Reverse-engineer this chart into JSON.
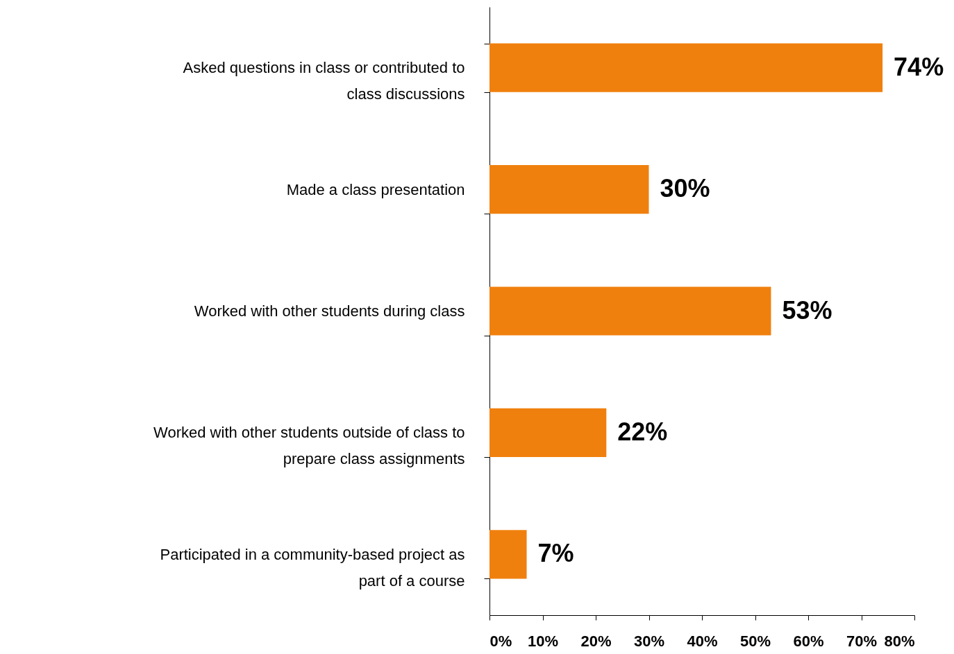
{
  "chart_data": {
    "type": "bar",
    "orientation": "horizontal",
    "categories": [
      "Asked questions in class or contributed to class discussions",
      "Made a class presentation",
      "Worked with other students during class",
      "Worked with other students outside of class to prepare class assignments",
      "Participated in a community-based project as part of a course"
    ],
    "values": [
      74,
      30,
      53,
      22,
      7
    ],
    "value_labels": [
      "74%",
      "30%",
      "53%",
      "22%",
      "7%"
    ],
    "color": "#f0800d",
    "xlim": [
      0,
      80
    ],
    "xticks": [
      {
        "value": 0,
        "label": "0%"
      },
      {
        "value": 10,
        "label": "10%"
      },
      {
        "value": 20,
        "label": "20%"
      },
      {
        "value": 30,
        "label": "30%"
      },
      {
        "value": 40,
        "label": "40%"
      },
      {
        "value": 50,
        "label": "50%"
      },
      {
        "value": 60,
        "label": "60%"
      },
      {
        "value": 70,
        "label": "70%"
      },
      {
        "value": 80,
        "label": "80%"
      }
    ],
    "grid": false
  }
}
